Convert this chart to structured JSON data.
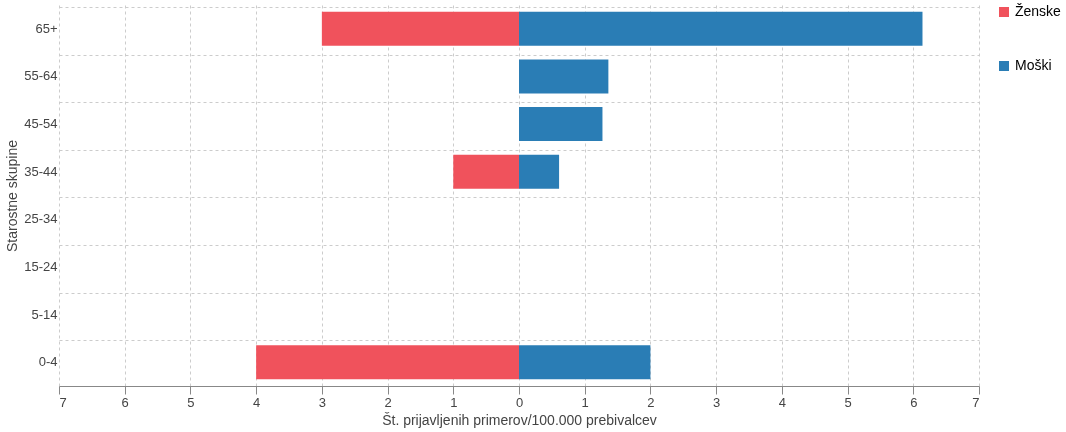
{
  "chart_data": {
    "type": "bar",
    "orientation": "horizontal",
    "xlabel": "Št. prijavljenih primerov/100.000 prebivalcev",
    "ylabel": "Starostne skupine",
    "categories": [
      "65+",
      "55-64",
      "45-54",
      "35-44",
      "25-34",
      "15-24",
      "5-14",
      "0-4"
    ],
    "series": [
      {
        "name": "Ženske",
        "color": "#f0525c",
        "values": [
          -3,
          null,
          null,
          -1,
          null,
          null,
          null,
          -4
        ]
      },
      {
        "name": "Moški",
        "color": "#2a7db5",
        "values": [
          6.14,
          1.36,
          1.27,
          0.61,
          null,
          null,
          null,
          2
        ]
      }
    ],
    "xlim": [
      -7,
      7
    ],
    "xticks": [
      {
        "value": -7,
        "label": "7"
      },
      {
        "value": -6,
        "label": "6"
      },
      {
        "value": -5,
        "label": "5"
      },
      {
        "value": -4,
        "label": "4"
      },
      {
        "value": -3,
        "label": "3"
      },
      {
        "value": -2,
        "label": "2"
      },
      {
        "value": -1,
        "label": "1"
      },
      0,
      1,
      2,
      3,
      4,
      5,
      6,
      7
    ],
    "grid": true,
    "legend": "right"
  }
}
